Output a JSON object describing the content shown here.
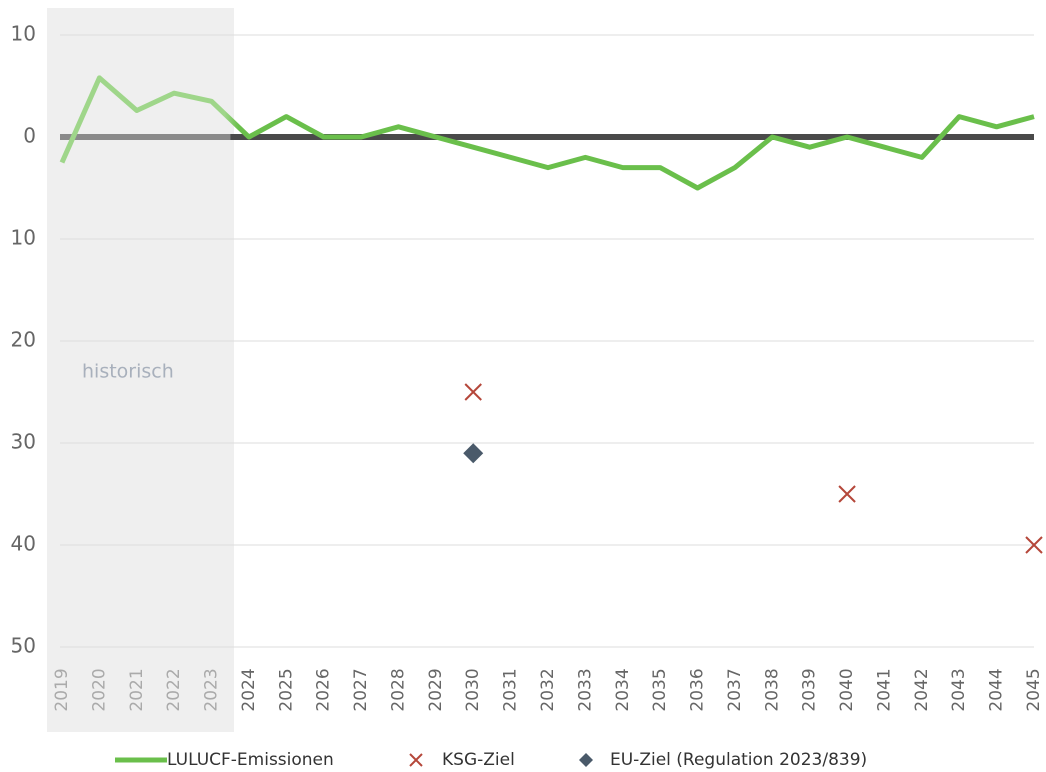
{
  "chart_data": {
    "type": "line",
    "annotation": "historisch",
    "categories": [
      "2019",
      "2020",
      "2021",
      "2022",
      "2023",
      "2024",
      "2025",
      "2026",
      "2027",
      "2028",
      "2029",
      "2030",
      "2031",
      "2032",
      "2033",
      "2034",
      "2035",
      "2036",
      "2037",
      "2038",
      "2039",
      "2040",
      "2041",
      "2042",
      "2043",
      "2044",
      "2045"
    ],
    "series": [
      {
        "name": "LULUCF-Emissionen",
        "color": "#6abf4b",
        "style": "line",
        "values": [
          -2.5,
          5.8,
          2.6,
          4.3,
          3.5,
          0,
          2,
          0,
          0,
          1,
          0,
          -1,
          -2,
          -3,
          -2,
          -3,
          -3,
          -5,
          -3,
          0,
          -1,
          0,
          -1,
          -2,
          2,
          1,
          2
        ]
      },
      {
        "name": "KSG-Ziel",
        "color": "#b5473a",
        "style": "x",
        "values": [
          null,
          null,
          null,
          null,
          null,
          null,
          null,
          null,
          null,
          null,
          null,
          -25,
          null,
          null,
          null,
          null,
          null,
          null,
          null,
          null,
          null,
          -35,
          null,
          null,
          null,
          null,
          -40
        ]
      },
      {
        "name": "EU-Ziel (Regulation 2023/839)",
        "color": "#4a5a6a",
        "style": "diamond",
        "values": [
          null,
          null,
          null,
          null,
          null,
          null,
          null,
          null,
          null,
          null,
          null,
          -31,
          null,
          null,
          null,
          null,
          null,
          null,
          null,
          null,
          null,
          null,
          null,
          null,
          null,
          null,
          null
        ]
      }
    ],
    "ylim": [
      -50,
      10
    ],
    "yticks": [
      10,
      0,
      {
        "value": -10,
        "label": "10"
      },
      {
        "value": -20,
        "label": "20"
      },
      {
        "value": -30,
        "label": "30"
      },
      {
        "value": -40,
        "label": "40"
      },
      {
        "value": -50,
        "label": "50"
      }
    ],
    "grid": true
  }
}
